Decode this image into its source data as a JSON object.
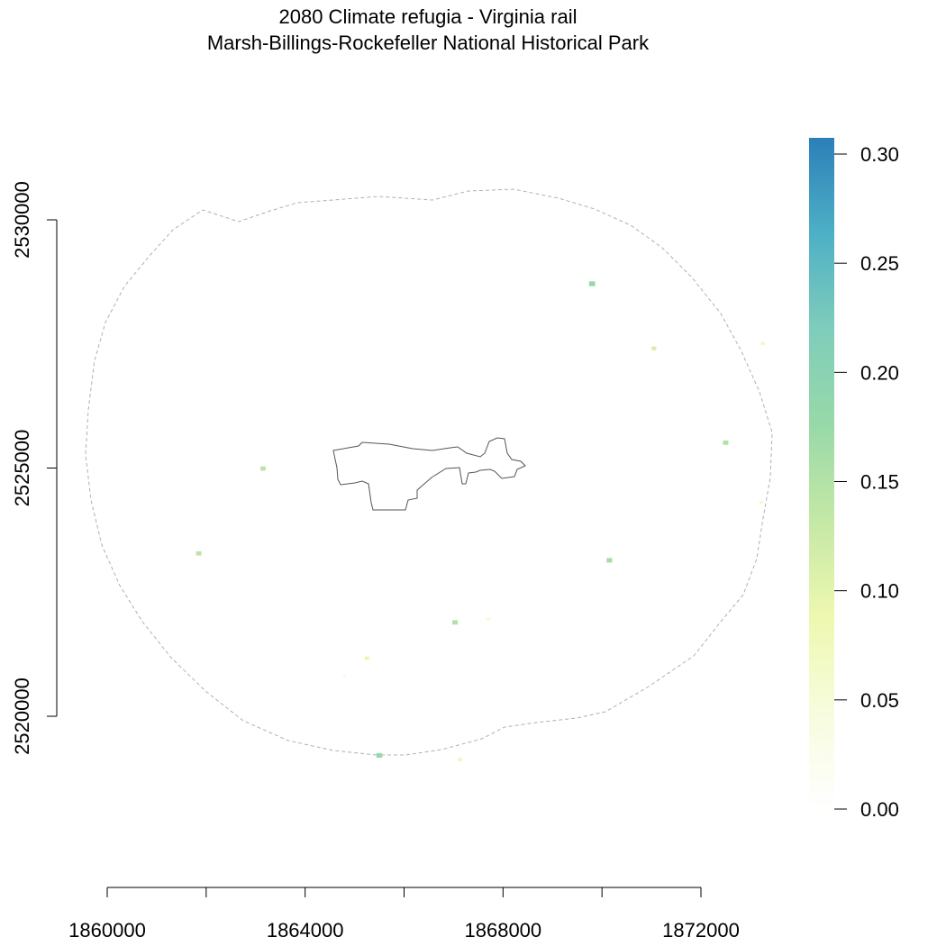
{
  "title": {
    "line1": "2080 Climate refugia - Virginia rail",
    "line2": "Marsh-Billings-Rockefeller National Historical Park"
  },
  "x_axis": {
    "range": [
      1860000,
      1872000
    ],
    "ticks": [
      1860000,
      1862000,
      1864000,
      1866000,
      1868000,
      1870000,
      1872000
    ],
    "labels": [
      {
        "value": 1860000,
        "text": "1860000"
      },
      {
        "value": 1864000,
        "text": "1864000"
      },
      {
        "value": 1868000,
        "text": "1868000"
      },
      {
        "value": 1872000,
        "text": "1872000"
      }
    ]
  },
  "y_axis": {
    "range": [
      2520000,
      2530000
    ],
    "ticks": [
      2520000,
      2525000,
      2530000
    ],
    "labels": [
      {
        "value": 2520000,
        "text": "2520000"
      },
      {
        "value": 2525000,
        "text": "2525000"
      },
      {
        "value": 2530000,
        "text": "2530000"
      }
    ]
  },
  "legend": {
    "min": 0.0,
    "max": 0.3,
    "ticks": [
      {
        "value": 0.0,
        "text": "0.00"
      },
      {
        "value": 0.05,
        "text": "0.05"
      },
      {
        "value": 0.1,
        "text": "0.10"
      },
      {
        "value": 0.15,
        "text": "0.15"
      },
      {
        "value": 0.2,
        "text": "0.20"
      },
      {
        "value": 0.25,
        "text": "0.25"
      },
      {
        "value": 0.3,
        "text": "0.30"
      }
    ],
    "colors": [
      "#ffffff",
      "#f7fcde",
      "#eef8b0",
      "#c5e8a6",
      "#98d9a8",
      "#7fcdbb",
      "#4eb0c6",
      "#2c7fb8"
    ]
  },
  "colors": {
    "buffer_line": "#b0b0b0",
    "park_outline": "#555555"
  },
  "refugia": [
    {
      "x": 1869800,
      "y": 2528700,
      "value": 0.18
    },
    {
      "x": 1871050,
      "y": 2527400,
      "value": 0.11
    },
    {
      "x": 1873250,
      "y": 2527500,
      "value": 0.07
    },
    {
      "x": 1872500,
      "y": 2525500,
      "value": 0.15
    },
    {
      "x": 1873220,
      "y": 2524300,
      "value": 0.06
    },
    {
      "x": 1863150,
      "y": 2524980,
      "value": 0.14
    },
    {
      "x": 1861850,
      "y": 2523270,
      "value": 0.14
    },
    {
      "x": 1870150,
      "y": 2523130,
      "value": 0.16
    },
    {
      "x": 1867030,
      "y": 2521880,
      "value": 0.15
    },
    {
      "x": 1867700,
      "y": 2521950,
      "value": 0.05
    },
    {
      "x": 1865250,
      "y": 2521160,
      "value": 0.09
    },
    {
      "x": 1864800,
      "y": 2520800,
      "value": 0.04
    },
    {
      "x": 1865500,
      "y": 2519200,
      "value": 0.17
    },
    {
      "x": 1867130,
      "y": 2519120,
      "value": 0.08
    }
  ]
}
